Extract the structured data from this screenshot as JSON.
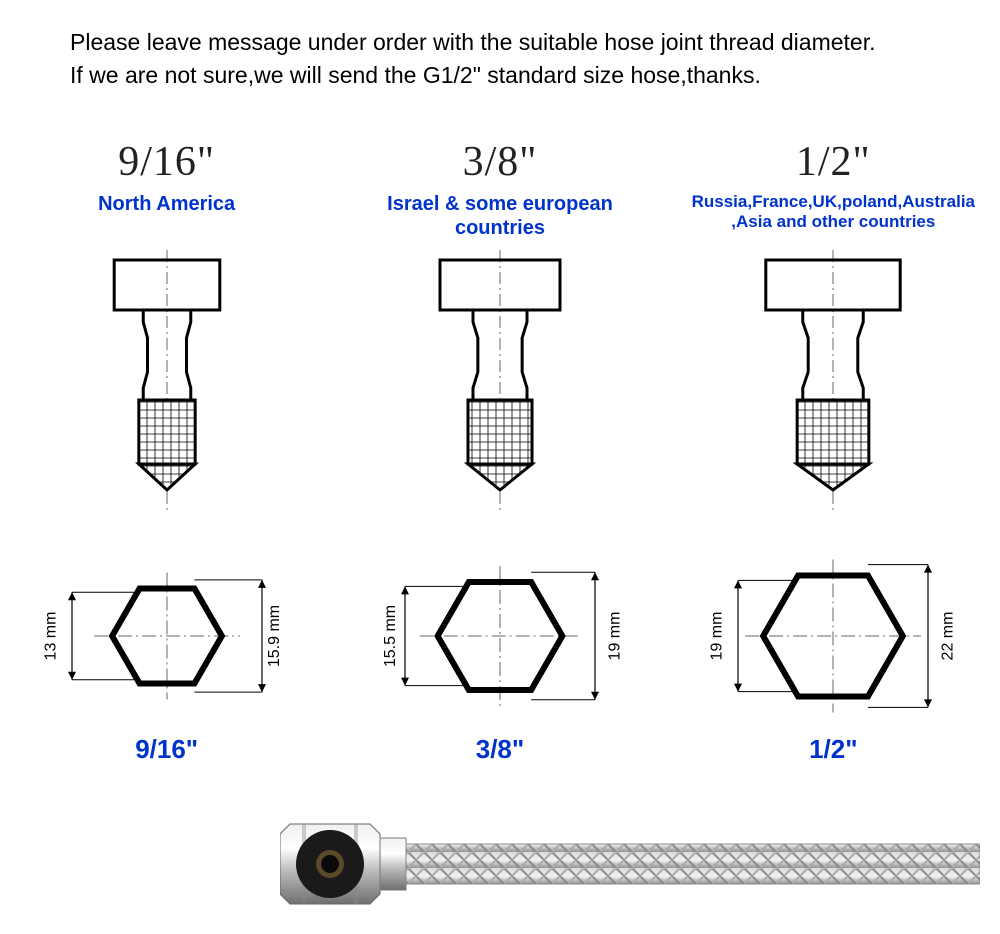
{
  "instruction_l1": "Please leave message under order with the suitable hose joint thread diameter.",
  "instruction_l2": "If we are not sure,we will send the G1/2\" standard size hose,thanks.",
  "colors": {
    "text": "#000000",
    "accent": "#0033cc",
    "stroke": "#000000",
    "centerline": "#666666",
    "background": "#ffffff"
  },
  "fitting_shape": {
    "head_w": 120,
    "head_h": 50,
    "neck_w": 54,
    "thread_w": 64,
    "thread_h": 64,
    "stroke_w": 3
  },
  "hex_shape": {
    "stroke_w": 6,
    "arrow_stroke": "#000000"
  },
  "sizes": [
    {
      "title": "9/16\"",
      "region": "North America",
      "region_small": false,
      "inner_mm": "13 mm",
      "outer_mm": "15.9 mm",
      "scale": 0.88,
      "bottom_label": "9/16\""
    },
    {
      "title": "3/8\"",
      "region": "Israel & some european countries",
      "region_small": false,
      "inner_mm": "15.5 mm",
      "outer_mm": "19 mm",
      "scale": 1.0,
      "bottom_label": "3/8\""
    },
    {
      "title": "1/2\"",
      "region": "Russia,France,UK,poland,Australia ,Asia and other countries",
      "region_small": true,
      "inner_mm": "19 mm",
      "outer_mm": "22 mm",
      "scale": 1.12,
      "bottom_label": "1/2\""
    }
  ]
}
